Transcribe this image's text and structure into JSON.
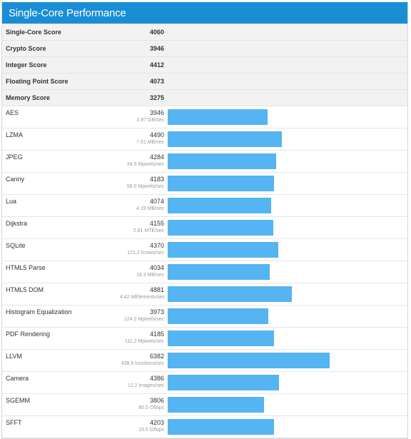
{
  "panel": {
    "title": "Single-Core Performance"
  },
  "colors": {
    "header_bg": "#1a8ed4",
    "bar": "#55b4f2"
  },
  "bar_scale_max": 9000,
  "summary": [
    {
      "name": "Single-Core Score",
      "score": "4060"
    },
    {
      "name": "Crypto Score",
      "score": "3946"
    },
    {
      "name": "Integer Score",
      "score": "4412"
    },
    {
      "name": "Floating Point Score",
      "score": "4073"
    },
    {
      "name": "Memory Score",
      "score": "3275"
    }
  ],
  "benchmarks": [
    {
      "name": "AES",
      "score": "3946",
      "rate": "2.97 GB/sec"
    },
    {
      "name": "LZMA",
      "score": "4490",
      "rate": "7.01 MB/sec"
    },
    {
      "name": "JPEG",
      "score": "4284",
      "rate": "34.5 Mpixels/sec"
    },
    {
      "name": "Canny",
      "score": "4183",
      "rate": "58.0 Mpixels/sec"
    },
    {
      "name": "Lua",
      "score": "4074",
      "rate": "4.19 MB/sec"
    },
    {
      "name": "Dijkstra",
      "score": "4155",
      "rate": "2.81 MTE/sec"
    },
    {
      "name": "SQLite",
      "score": "4370",
      "rate": "121.2 Krows/sec"
    },
    {
      "name": "HTML5 Parse",
      "score": "4034",
      "rate": "18.3 MB/sec"
    },
    {
      "name": "HTML5 DOM",
      "score": "4881",
      "rate": "4.42 MElements/sec"
    },
    {
      "name": "Histogram Equalization",
      "score": "3973",
      "rate": "124.2 Mpixels/sec"
    },
    {
      "name": "PDF Rendering",
      "score": "4185",
      "rate": "111.2 Mpixels/sec"
    },
    {
      "name": "LLVM",
      "score": "6382",
      "rate": "438.9 functions/sec"
    },
    {
      "name": "Camera",
      "score": "4386",
      "rate": "12.2 images/sec"
    },
    {
      "name": "SGEMM",
      "score": "3806",
      "rate": "80.5 Gflops"
    },
    {
      "name": "SFFT",
      "score": "4203",
      "rate": "10.5 Gflops"
    }
  ]
}
